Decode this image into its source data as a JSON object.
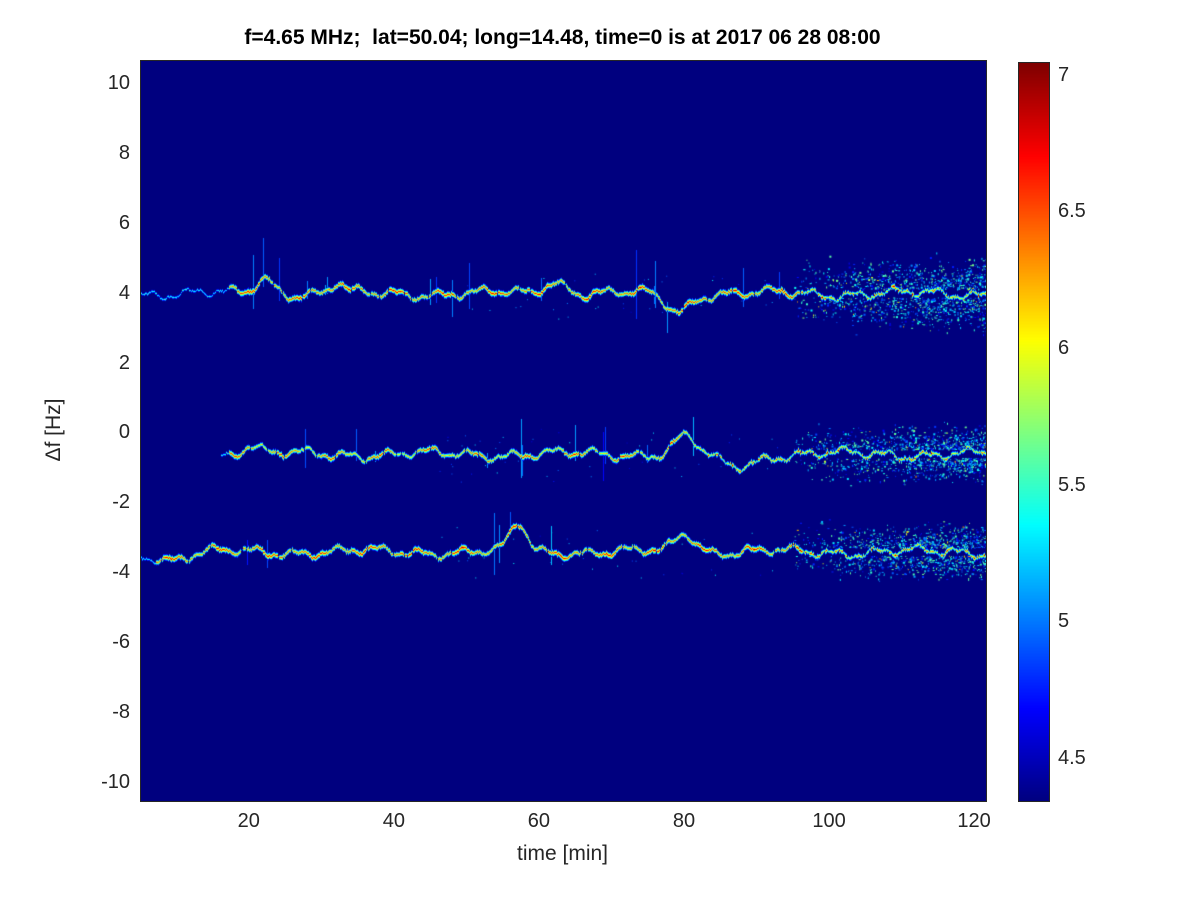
{
  "figure": {
    "background": "#ffffff",
    "axes_color": "#262626"
  },
  "chart_data": {
    "type": "heatmap",
    "title": "f=4.65 MHz;  lat=50.04; long=14.48, time=0 is at 2017 06 28 08:00",
    "xlabel": "time [min]",
    "ylabel": "Δf [Hz]",
    "xlim": [
      5,
      121.5
    ],
    "ylim": [
      -10.5,
      10.7
    ],
    "xticks": [
      20,
      40,
      60,
      80,
      100,
      120
    ],
    "yticks": [
      10,
      8,
      6,
      4,
      2,
      0,
      -2,
      -4,
      -6,
      -8,
      -10
    ],
    "grid": false,
    "colormap": "jet",
    "background_value": 4.35,
    "colorbar": {
      "position": "right",
      "min": 4.35,
      "max": 7.05,
      "ticks": [
        4.5,
        5,
        5.5,
        6,
        6.5,
        7
      ]
    },
    "noise_onset_min": 95,
    "traces": [
      {
        "name": "upper-doppler-trace",
        "center_hz": 4.05,
        "seed": 1.3,
        "t_start": 5,
        "t_end": 121.5,
        "strong_from": 17,
        "strong_to": 96,
        "peak": 7.05,
        "scatter_spread_hz": 1.25,
        "features": [
          {
            "t": 22,
            "df": 0.45,
            "w": 1.2
          },
          {
            "t": 32,
            "df": 0.3,
            "w": 0.8
          },
          {
            "t": 62,
            "df": 0.35,
            "w": 1.6
          },
          {
            "t": 79,
            "df": -0.5,
            "w": 1.6
          }
        ]
      },
      {
        "name": "middle-doppler-trace",
        "center_hz": -0.55,
        "seed": 2.7,
        "t_start": 16,
        "t_end": 121.5,
        "strong_from": 17,
        "strong_to": 82,
        "peak": 6.9,
        "scatter_spread_hz": 1.05,
        "features": [
          {
            "t": 20,
            "df": 0.25,
            "w": 1.2
          },
          {
            "t": 80,
            "df": 0.5,
            "w": 1.5
          },
          {
            "t": 87,
            "df": -0.35,
            "w": 2.5
          }
        ]
      },
      {
        "name": "lower-doppler-trace",
        "center_hz": -3.35,
        "seed": 4.1,
        "t_start": 5,
        "t_end": 121.5,
        "strong_from": 7,
        "strong_to": 96,
        "peak": 7.05,
        "scatter_spread_hz": 1.0,
        "features": [
          {
            "t": 9,
            "df": -0.2,
            "w": 2.5
          },
          {
            "t": 57,
            "df": 0.8,
            "w": 1.1
          },
          {
            "t": 80,
            "df": 0.55,
            "w": 1.4
          }
        ]
      }
    ]
  }
}
